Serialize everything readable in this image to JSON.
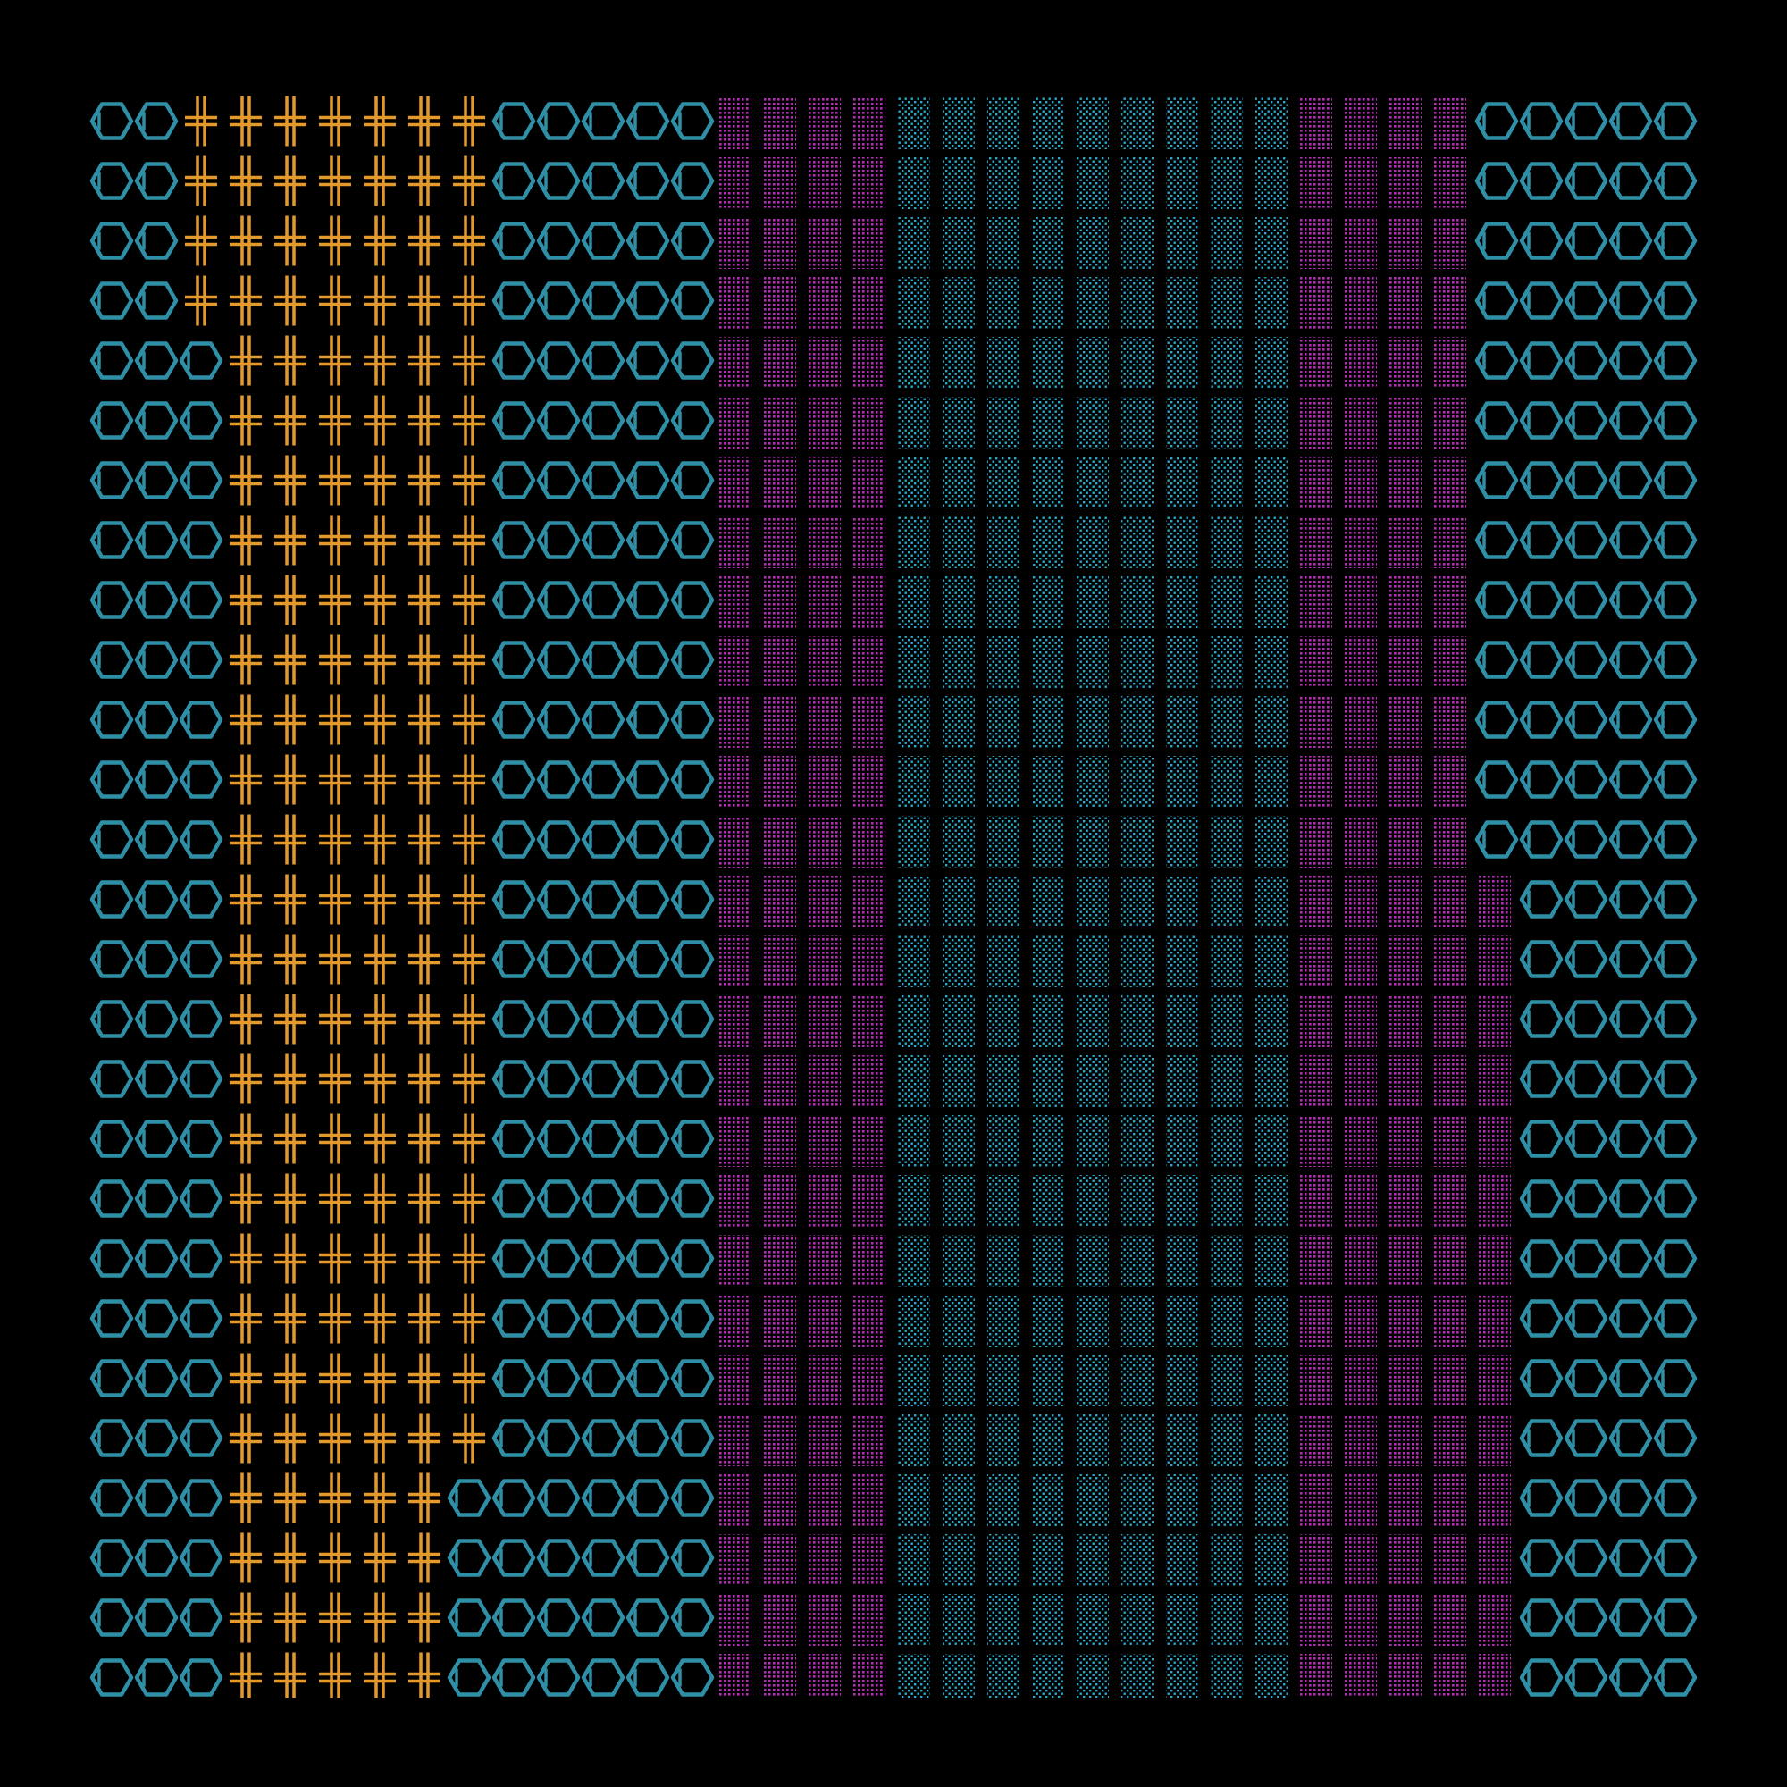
{
  "artwork": {
    "background_color": "#000000",
    "palette": {
      "teal": "#2e8fa6",
      "orange": "#e39a2b",
      "magenta": "#b42bb4",
      "cyan_dots": "#2aa8c8"
    },
    "row_count": 27,
    "glyph_types": [
      "hexagon-glyph",
      "cross-glyph",
      "magenta-dot-block",
      "cyan-dot-block",
      "colon-glyph"
    ]
  }
}
